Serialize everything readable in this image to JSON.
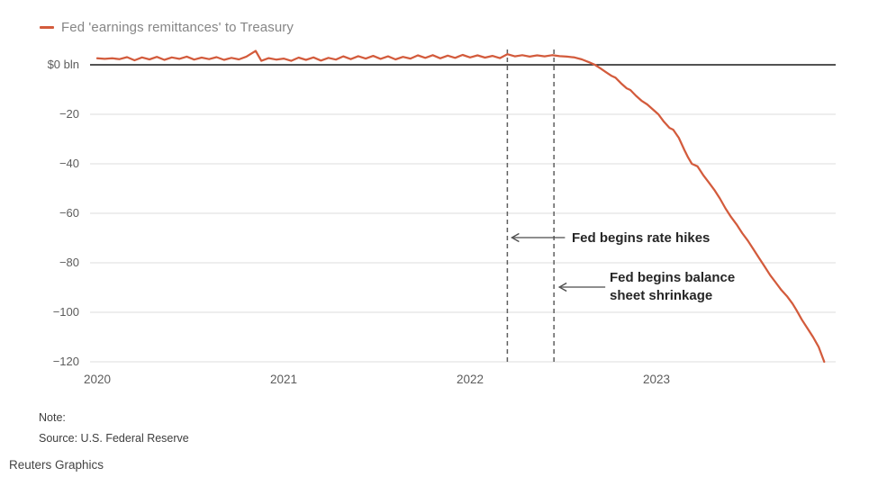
{
  "legend": {
    "label": "Fed 'earnings remittances' to Treasury",
    "color": "#d35b3c"
  },
  "annotations": {
    "rate_hikes": {
      "text": "Fed begins rate hikes",
      "event_year": 2022.2
    },
    "balance_sheet": {
      "lines": [
        "Fed begins balance",
        "sheet shrinkage"
      ],
      "event_year": 2022.45
    }
  },
  "footer": {
    "note_label": "Note:",
    "source": "Source: U.S. Federal Reserve",
    "credit": "Reuters Graphics"
  },
  "chart_data": {
    "type": "line",
    "title": "",
    "xlabel": "",
    "ylabel": "$ bln",
    "xlim": [
      2020,
      2023.95
    ],
    "ylim": [
      -122,
      8
    ],
    "grid": "horizontal",
    "legend_position": "top-left",
    "x_ticks": [
      2020,
      2021,
      2022,
      2023
    ],
    "x_tick_labels": [
      "2020",
      "2021",
      "2022",
      "2023"
    ],
    "y_ticks": [
      0,
      -20,
      -40,
      -60,
      -80,
      -100,
      -120
    ],
    "y_tick_labels": [
      "$0 bln",
      "−20",
      "−40",
      "−60",
      "−80",
      "−100",
      "−120"
    ],
    "zero_line": 0,
    "event_lines": [
      {
        "x": 2022.2,
        "label": "Fed begins rate hikes",
        "style": "dashed"
      },
      {
        "x": 2022.45,
        "label": "Fed begins balance sheet shrinkage",
        "style": "dashed"
      }
    ],
    "series": [
      {
        "name": "Fed 'earnings remittances' to Treasury",
        "color": "#d35b3c",
        "points": [
          [
            2020.0,
            2.6
          ],
          [
            2020.04,
            2.4
          ],
          [
            2020.08,
            2.6
          ],
          [
            2020.12,
            2.3
          ],
          [
            2020.16,
            3.1
          ],
          [
            2020.2,
            1.8
          ],
          [
            2020.24,
            3.0
          ],
          [
            2020.28,
            2.2
          ],
          [
            2020.32,
            3.2
          ],
          [
            2020.36,
            2.0
          ],
          [
            2020.4,
            3.0
          ],
          [
            2020.44,
            2.4
          ],
          [
            2020.48,
            3.3
          ],
          [
            2020.52,
            2.1
          ],
          [
            2020.56,
            2.9
          ],
          [
            2020.6,
            2.3
          ],
          [
            2020.64,
            3.1
          ],
          [
            2020.68,
            2.0
          ],
          [
            2020.72,
            2.8
          ],
          [
            2020.76,
            2.2
          ],
          [
            2020.8,
            3.3
          ],
          [
            2020.85,
            5.6
          ],
          [
            2020.88,
            1.6
          ],
          [
            2020.92,
            2.7
          ],
          [
            2020.96,
            2.1
          ],
          [
            2021.0,
            2.5
          ],
          [
            2021.04,
            1.6
          ],
          [
            2021.08,
            2.9
          ],
          [
            2021.12,
            2.0
          ],
          [
            2021.16,
            3.0
          ],
          [
            2021.2,
            1.7
          ],
          [
            2021.24,
            2.8
          ],
          [
            2021.28,
            2.1
          ],
          [
            2021.32,
            3.4
          ],
          [
            2021.36,
            2.3
          ],
          [
            2021.4,
            3.5
          ],
          [
            2021.44,
            2.5
          ],
          [
            2021.48,
            3.6
          ],
          [
            2021.52,
            2.4
          ],
          [
            2021.56,
            3.4
          ],
          [
            2021.6,
            2.2
          ],
          [
            2021.64,
            3.2
          ],
          [
            2021.68,
            2.5
          ],
          [
            2021.72,
            3.8
          ],
          [
            2021.76,
            2.8
          ],
          [
            2021.8,
            3.9
          ],
          [
            2021.84,
            2.6
          ],
          [
            2021.88,
            3.7
          ],
          [
            2021.92,
            2.8
          ],
          [
            2021.96,
            4.0
          ],
          [
            2022.0,
            3.0
          ],
          [
            2022.04,
            3.8
          ],
          [
            2022.08,
            2.9
          ],
          [
            2022.12,
            3.6
          ],
          [
            2022.16,
            2.7
          ],
          [
            2022.2,
            4.3
          ],
          [
            2022.24,
            3.4
          ],
          [
            2022.28,
            3.9
          ],
          [
            2022.32,
            3.3
          ],
          [
            2022.36,
            3.8
          ],
          [
            2022.4,
            3.4
          ],
          [
            2022.44,
            3.9
          ],
          [
            2022.48,
            3.5
          ],
          [
            2022.52,
            3.3
          ],
          [
            2022.56,
            3.0
          ],
          [
            2022.6,
            2.2
          ],
          [
            2022.64,
            1.0
          ],
          [
            2022.67,
            0.0
          ],
          [
            2022.7,
            -1.5
          ],
          [
            2022.73,
            -3.0
          ],
          [
            2022.76,
            -4.5
          ],
          [
            2022.78,
            -5.2
          ],
          [
            2022.81,
            -7.5
          ],
          [
            2022.84,
            -9.5
          ],
          [
            2022.86,
            -10.2
          ],
          [
            2022.89,
            -12.5
          ],
          [
            2022.92,
            -14.5
          ],
          [
            2022.95,
            -16.0
          ],
          [
            2022.98,
            -18.0
          ],
          [
            2023.01,
            -20.0
          ],
          [
            2023.04,
            -23.0
          ],
          [
            2023.07,
            -25.5
          ],
          [
            2023.09,
            -26.2
          ],
          [
            2023.12,
            -29.5
          ],
          [
            2023.15,
            -34.5
          ],
          [
            2023.17,
            -37.5
          ],
          [
            2023.19,
            -40.0
          ],
          [
            2023.22,
            -41.0
          ],
          [
            2023.25,
            -44.5
          ],
          [
            2023.28,
            -47.5
          ],
          [
            2023.31,
            -50.5
          ],
          [
            2023.34,
            -54.0
          ],
          [
            2023.37,
            -58.0
          ],
          [
            2023.4,
            -61.5
          ],
          [
            2023.43,
            -64.5
          ],
          [
            2023.46,
            -68.0
          ],
          [
            2023.49,
            -71.0
          ],
          [
            2023.52,
            -74.5
          ],
          [
            2023.55,
            -78.0
          ],
          [
            2023.58,
            -81.5
          ],
          [
            2023.61,
            -85.0
          ],
          [
            2023.64,
            -88.0
          ],
          [
            2023.67,
            -91.0
          ],
          [
            2023.7,
            -93.5
          ],
          [
            2023.73,
            -96.5
          ],
          [
            2023.75,
            -99.0
          ],
          [
            2023.78,
            -103.0
          ],
          [
            2023.81,
            -106.5
          ],
          [
            2023.84,
            -110.0
          ],
          [
            2023.87,
            -114.0
          ],
          [
            2023.9,
            -120.0
          ]
        ]
      }
    ]
  }
}
